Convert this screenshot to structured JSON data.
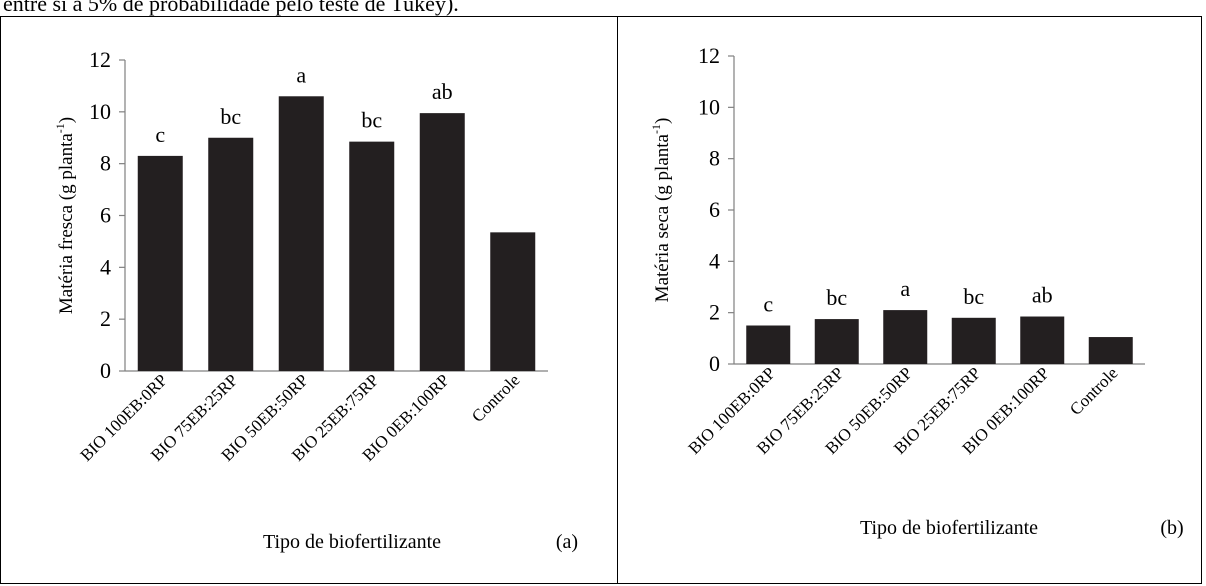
{
  "caption": "entre si a 5% de probabilidade pelo teste de Tukey).",
  "chart_data": [
    {
      "type": "bar",
      "panel_label": "(a)",
      "xlabel": "Tipo de biofertilizante",
      "ylabel": "Matéria fresca (g planta",
      "ylabel_sup": "-1",
      "ylabel_end": ")",
      "categories": [
        "BIO 100EB:0RP",
        "BIO 75EB:25RP",
        "BIO 50EB:50RP",
        "BIO 25EB:75RP",
        "BIO 0EB:100RP",
        "Controle"
      ],
      "values": [
        8.3,
        9.0,
        10.6,
        8.85,
        9.95,
        5.35
      ],
      "annotations": [
        "c",
        "bc",
        "a",
        "bc",
        "ab",
        ""
      ],
      "ylim": [
        0,
        12
      ],
      "yticks": [
        "0",
        "2",
        "4",
        "6",
        "8",
        "10",
        "12"
      ],
      "bar_color": "#231f20"
    },
    {
      "type": "bar",
      "panel_label": "(b)",
      "xlabel": "Tipo de biofertilizante",
      "ylabel": "Matéria seca (g planta",
      "ylabel_sup": "-1",
      "ylabel_end": ")",
      "categories": [
        "BIO 100EB:0RP",
        "BIO 75EB:25RP",
        "BIO 50EB:50RP",
        "BIO 25EB:75RP",
        "BIO 0EB:100RP",
        "Controle"
      ],
      "values": [
        1.5,
        1.75,
        2.1,
        1.8,
        1.85,
        1.05
      ],
      "annotations": [
        "c",
        "bc",
        "a",
        "bc",
        "ab",
        ""
      ],
      "ylim": [
        0,
        12
      ],
      "yticks": [
        "0",
        "2",
        "4",
        "6",
        "8",
        "10",
        "12"
      ],
      "bar_color": "#231f20"
    }
  ]
}
